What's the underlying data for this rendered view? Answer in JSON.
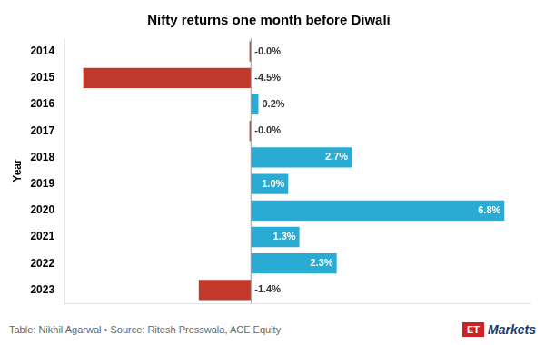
{
  "chart_data": {
    "type": "bar",
    "orientation": "horizontal",
    "title": "Nifty returns one month before Diwali",
    "ylabel": "Year",
    "categories": [
      "2014",
      "2015",
      "2016",
      "2017",
      "2018",
      "2019",
      "2020",
      "2021",
      "2022",
      "2023"
    ],
    "values": [
      -0.04,
      -4.5,
      0.2,
      -0.04,
      2.7,
      1.0,
      6.8,
      1.3,
      2.3,
      -1.4
    ],
    "value_labels": [
      "-0.0%",
      "-4.5%",
      "0.2%",
      "-0.0%",
      "2.7%",
      "1.0%",
      "6.8%",
      "1.3%",
      "2.3%",
      "-1.4%"
    ],
    "colors": [
      "#C0392B",
      "#C0392B",
      "#29ABD4",
      "#C0392B",
      "#29ABD4",
      "#29ABD4",
      "#29ABD4",
      "#29ABD4",
      "#29ABD4",
      "#C0392B"
    ],
    "xlim": [
      -5.0,
      7.5
    ],
    "data_labels": true,
    "tick_labels": "y",
    "grid": false,
    "annotations": [
      "Table: Nikhil Agarwal • Source: Ritesh Presswala, ACE Equity",
      "ET",
      "Markets"
    ]
  }
}
